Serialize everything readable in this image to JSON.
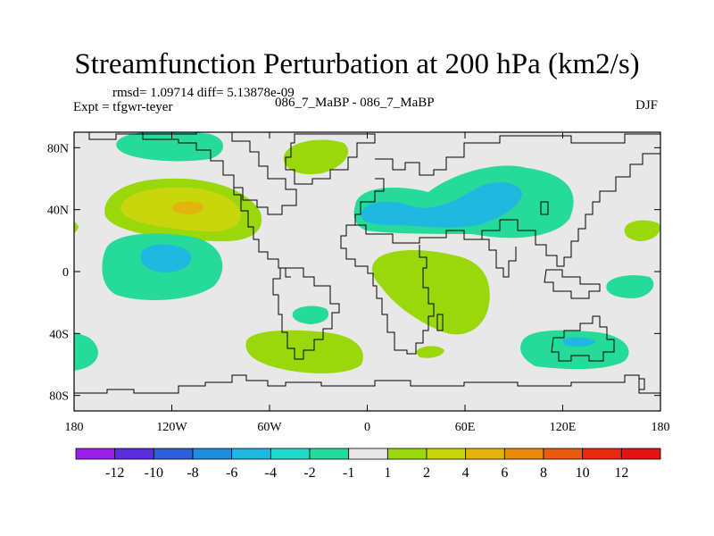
{
  "chart_data": {
    "type": "heatmap",
    "title": "Streamfunction Perturbation at 200 hPa (km2/s)",
    "stats_text": "rmsd= 1.09714 diff= 5.13878e-09",
    "expt_text": "Expt = tfgwr-teyer",
    "center_text": "086_7_MaBP - 086_7_MaBP",
    "season": "DJF",
    "x_ticks": [
      "180",
      "120W",
      "60W",
      "0",
      "60E",
      "120E",
      "180"
    ],
    "y_ticks": [
      "80N",
      "40N",
      "0",
      "40S",
      "80S"
    ],
    "x_range": [
      -180,
      180
    ],
    "y_range": [
      -90,
      90
    ],
    "colorbar": {
      "labels": [
        "-12",
        "-10",
        "-8",
        "-6",
        "-4",
        "-2",
        "-1",
        "1",
        "2",
        "4",
        "6",
        "8",
        "10",
        "12"
      ],
      "colors": [
        "#9a20e8",
        "#5a2ee0",
        "#2f5fd8",
        "#1f8ce0",
        "#20b8e0",
        "#20d8c8",
        "#26da9a",
        "#e8e8e8",
        "#9ad80c",
        "#c8d60c",
        "#e2b40c",
        "#e88a10",
        "#ea5a10",
        "#e82a10",
        "#e61212"
      ]
    }
  }
}
